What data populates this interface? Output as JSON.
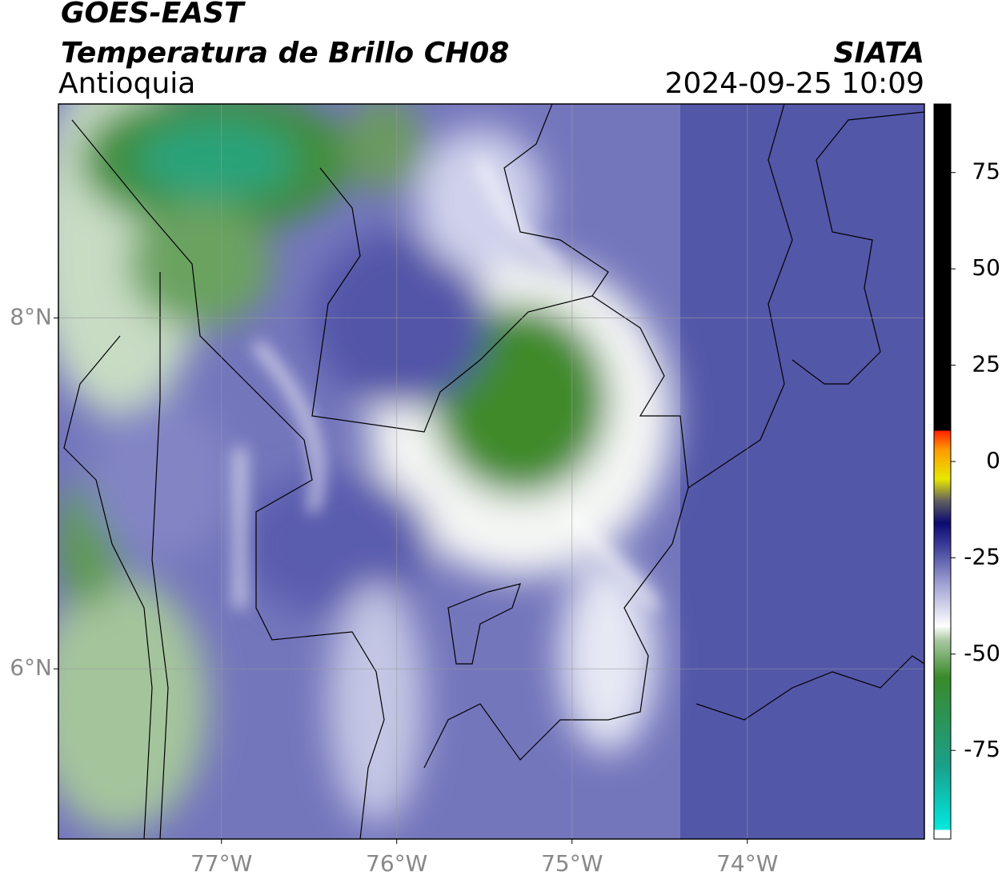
{
  "map": {
    "title": "GOES-EAST",
    "subtitle": "Temperatura de Brillo CH08",
    "agency": "SIATA",
    "region": "Antioquia",
    "datetime": "2024-09-25 10:09",
    "xlim": [
      -77.93,
      -72.99
    ],
    "ylim": [
      5.03,
      9.22
    ],
    "xticks": [
      {
        "value": -77,
        "label": "77°W"
      },
      {
        "value": -76,
        "label": "76°W"
      },
      {
        "value": -75,
        "label": "75°W"
      },
      {
        "value": -74,
        "label": "74°W"
      }
    ],
    "yticks": [
      {
        "value": 8,
        "label": "8°N"
      },
      {
        "value": 6,
        "label": "6°N"
      }
    ],
    "grid": true,
    "colorbar": {
      "lim": [
        -98,
        92.8
      ],
      "ticks": [
        75,
        50,
        25,
        0,
        -25,
        -50,
        -75
      ]
    }
  }
}
